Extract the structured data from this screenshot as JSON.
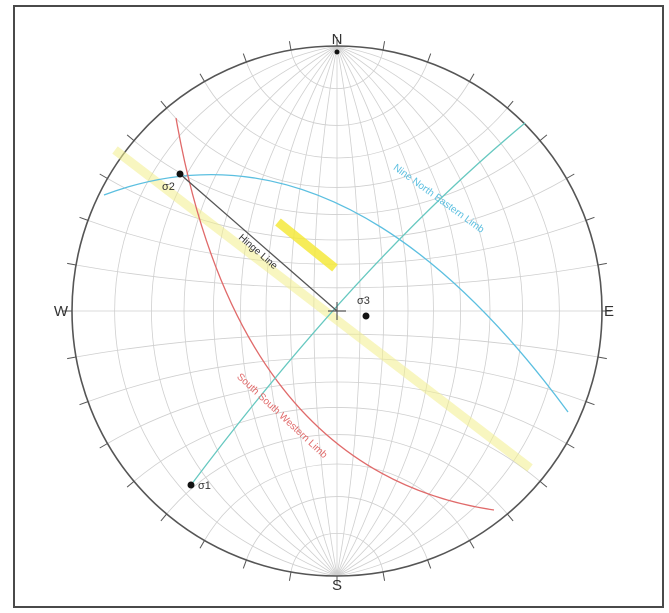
{
  "directions": {
    "north": "N",
    "south": "S",
    "east": "E",
    "west": "W"
  },
  "points": {
    "sigma1": "σ1",
    "sigma2": "σ2",
    "sigma3": "σ3"
  },
  "lines": {
    "hinge": "Hinge Line",
    "nne_limb": "Nine North Eastern Limb",
    "ssw_limb": "South South Western Limb"
  },
  "colors": {
    "net_grid": "#cfcfcf",
    "primitive": "#555555",
    "nne_limb": "#5bbfe0",
    "ssw_limb": "#e06a6a",
    "sigma1_plane": "#66c8c0",
    "axial_band": "#f2ee8c",
    "highlight": "#f4e93c",
    "hinge": "#555555",
    "point": "#111111"
  }
}
